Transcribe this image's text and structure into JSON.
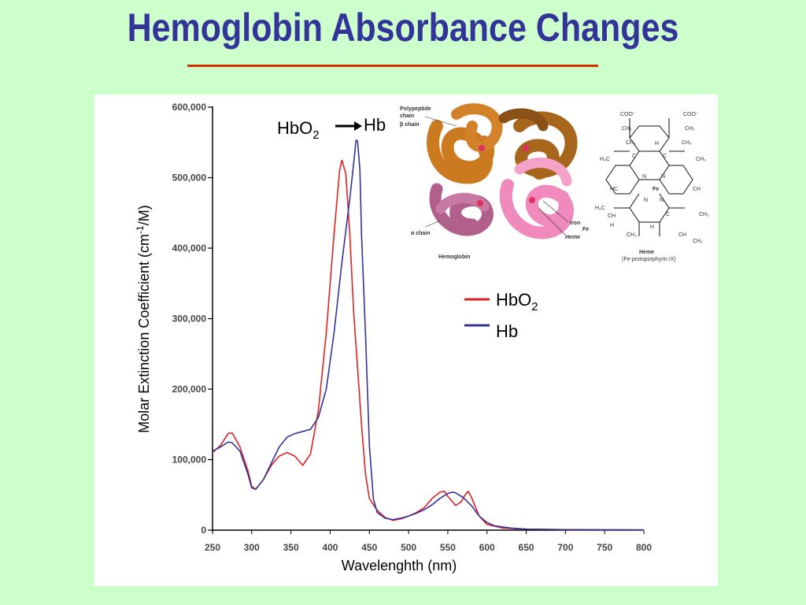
{
  "slide": {
    "title": "Hemoglobin Absorbance Changes"
  },
  "annotation": {
    "from_main": "HbO",
    "from_sub": "2",
    "to": "Hb"
  },
  "legend_entries": [
    {
      "name_main": "HbO",
      "name_sub": "2",
      "color": "#dd2222"
    },
    {
      "name_main": "Hb",
      "name_sub": "",
      "color": "#333399"
    }
  ],
  "colors": {
    "background": "#ccffcc",
    "title": "#333399",
    "rule": "#cc3300"
  },
  "hemoglobin_figure": {
    "labels": [
      "Polypeptide",
      "chain",
      "β chain",
      "α chain",
      "Hemoglobin",
      "Iron",
      "Fe",
      "Heme"
    ],
    "heme_title": "Heme",
    "heme_subtitle": "(Fe-protoporphyrin IX)",
    "heme_atoms": [
      "COO⁻",
      "COO⁻",
      "CH₂",
      "CH₂",
      "CH₂",
      "CH₂",
      "H",
      "H₃C",
      "C",
      "C",
      "CH₃",
      "N",
      "N",
      "Fe",
      "HC",
      "CH",
      "N",
      "N",
      "H₂C",
      "CH",
      "C",
      "CH₃",
      "H",
      "H",
      "CH₃",
      "CH",
      "CH₂"
    ]
  },
  "chart_data": {
    "type": "line",
    "xlabel": "Wavelenghth (nm)",
    "ylabel_main": "Molar Extinction Coefficient (cm",
    "ylabel_sup": "-1",
    "ylabel_end": "/M)",
    "xlim": [
      250,
      800
    ],
    "ylim": [
      0,
      600000
    ],
    "x_ticks": [
      "250",
      "300",
      "350",
      "400",
      "450",
      "500",
      "550",
      "600",
      "650",
      "700",
      "750",
      "800"
    ],
    "y_ticks": [
      "0",
      "100,000",
      "200,000",
      "300,000",
      "400,000",
      "500,000",
      "600,000"
    ],
    "grid": false,
    "legend_position": "right",
    "series": [
      {
        "name": "HbO2",
        "color": "#dd2222",
        "points": [
          [
            250,
            110000
          ],
          [
            260,
            120000
          ],
          [
            270,
            137000
          ],
          [
            275,
            138000
          ],
          [
            285,
            118000
          ],
          [
            295,
            85000
          ],
          [
            300,
            62000
          ],
          [
            305,
            58000
          ],
          [
            315,
            72000
          ],
          [
            325,
            92000
          ],
          [
            335,
            105000
          ],
          [
            345,
            110000
          ],
          [
            355,
            105000
          ],
          [
            365,
            92000
          ],
          [
            375,
            108000
          ],
          [
            385,
            170000
          ],
          [
            395,
            280000
          ],
          [
            405,
            420000
          ],
          [
            412,
            510000
          ],
          [
            415,
            525000
          ],
          [
            420,
            505000
          ],
          [
            425,
            420000
          ],
          [
            430,
            310000
          ],
          [
            440,
            150000
          ],
          [
            445,
            80000
          ],
          [
            450,
            45000
          ],
          [
            460,
            28000
          ],
          [
            470,
            18000
          ],
          [
            480,
            14000
          ],
          [
            490,
            16000
          ],
          [
            500,
            20000
          ],
          [
            510,
            25000
          ],
          [
            520,
            32000
          ],
          [
            530,
            45000
          ],
          [
            540,
            54000
          ],
          [
            546,
            55000
          ],
          [
            550,
            48000
          ],
          [
            560,
            35000
          ],
          [
            567,
            40000
          ],
          [
            572,
            50000
          ],
          [
            576,
            55000
          ],
          [
            580,
            47000
          ],
          [
            590,
            20000
          ],
          [
            600,
            8000
          ],
          [
            620,
            3000
          ],
          [
            650,
            1500
          ],
          [
            700,
            700
          ],
          [
            750,
            400
          ],
          [
            800,
            300
          ]
        ]
      },
      {
        "name": "Hb",
        "color": "#333399",
        "points": [
          [
            250,
            112000
          ],
          [
            260,
            118000
          ],
          [
            270,
            125000
          ],
          [
            275,
            124000
          ],
          [
            285,
            112000
          ],
          [
            295,
            80000
          ],
          [
            300,
            60000
          ],
          [
            305,
            58000
          ],
          [
            315,
            72000
          ],
          [
            325,
            95000
          ],
          [
            335,
            118000
          ],
          [
            345,
            132000
          ],
          [
            355,
            137000
          ],
          [
            365,
            140000
          ],
          [
            375,
            143000
          ],
          [
            385,
            160000
          ],
          [
            395,
            200000
          ],
          [
            405,
            280000
          ],
          [
            415,
            380000
          ],
          [
            420,
            425000
          ],
          [
            425,
            470000
          ],
          [
            430,
            520000
          ],
          [
            433,
            553000
          ],
          [
            435,
            552000
          ],
          [
            438,
            510000
          ],
          [
            440,
            420000
          ],
          [
            445,
            280000
          ],
          [
            450,
            120000
          ],
          [
            455,
            45000
          ],
          [
            460,
            25000
          ],
          [
            470,
            17000
          ],
          [
            480,
            15000
          ],
          [
            490,
            17000
          ],
          [
            500,
            20000
          ],
          [
            510,
            24000
          ],
          [
            520,
            29000
          ],
          [
            530,
            36000
          ],
          [
            540,
            45000
          ],
          [
            550,
            52000
          ],
          [
            556,
            54000
          ],
          [
            560,
            53000
          ],
          [
            570,
            46000
          ],
          [
            580,
            35000
          ],
          [
            590,
            20000
          ],
          [
            600,
            11000
          ],
          [
            610,
            6000
          ],
          [
            630,
            3000
          ],
          [
            650,
            1500
          ],
          [
            700,
            800
          ],
          [
            750,
            500
          ],
          [
            800,
            300
          ]
        ]
      }
    ]
  }
}
